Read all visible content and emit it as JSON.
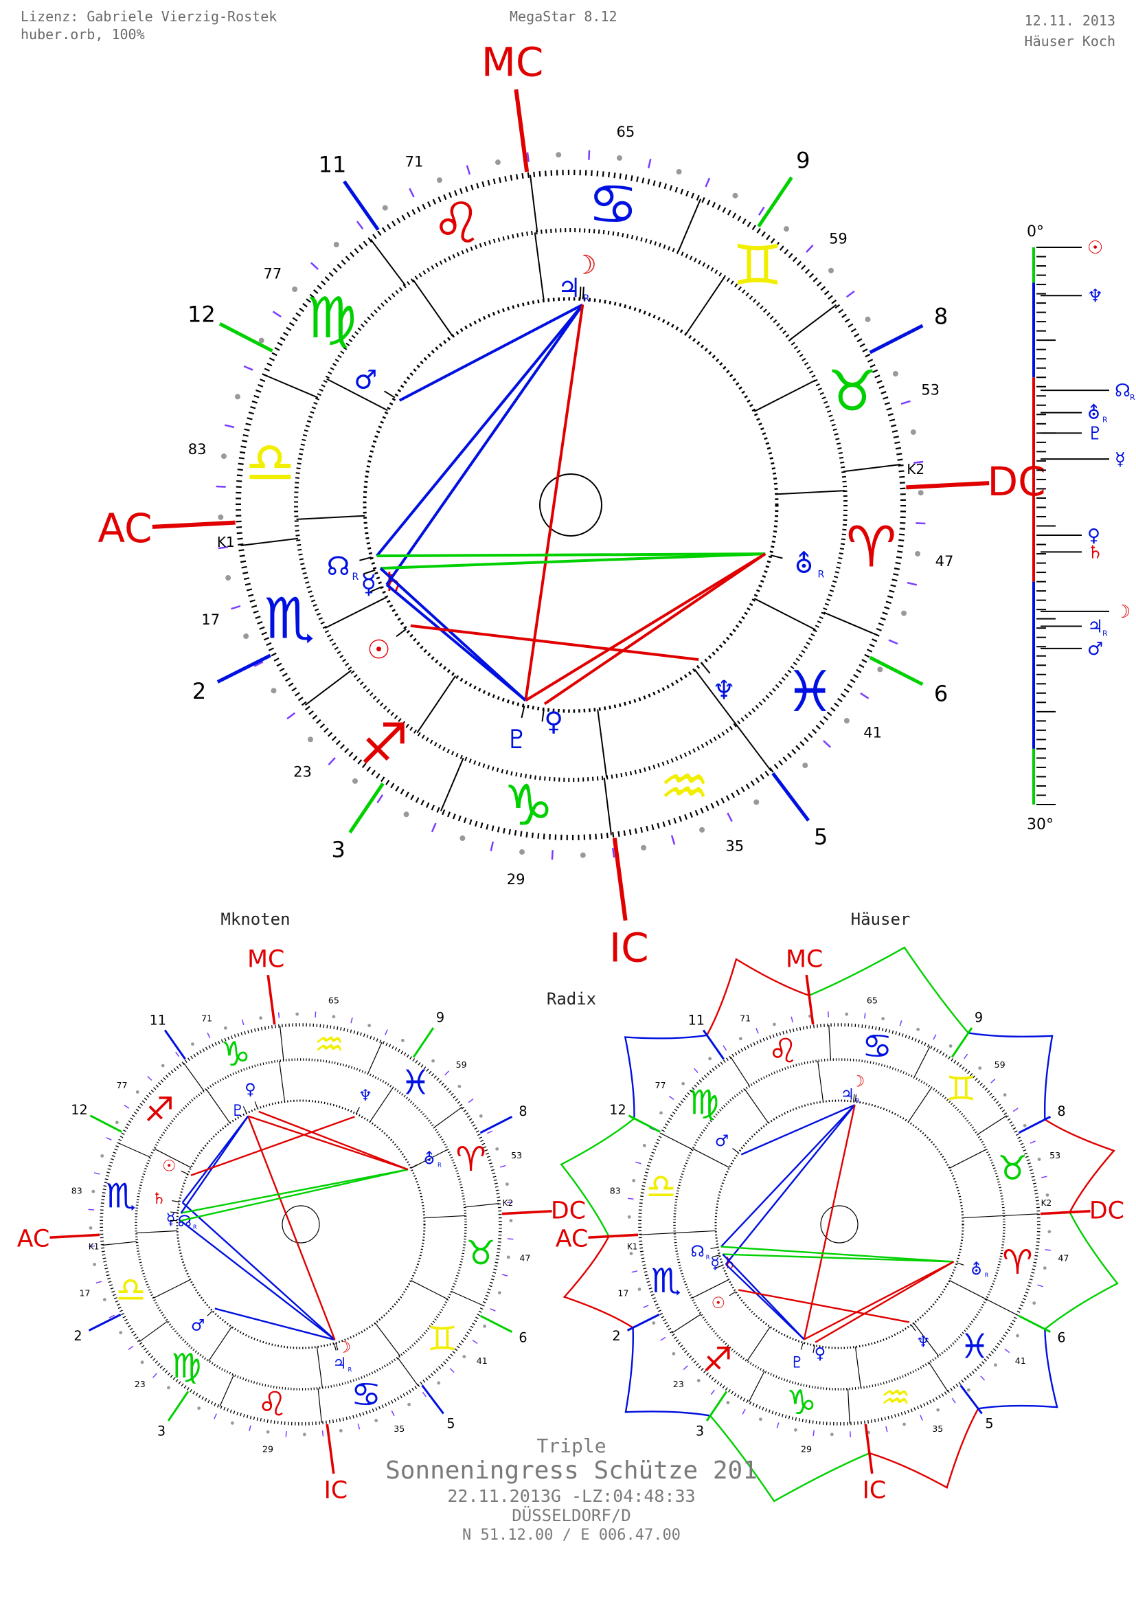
{
  "header": {
    "license": "Lizenz: Gabriele Vierzig-Rostek",
    "orb": "huber.orb, 100%",
    "app": "MegaStar 8.12",
    "date": "12.11. 2013",
    "house_system": "Häuser Koch"
  },
  "labels": {
    "mknoten": "Mknoten",
    "haeuser": "Häuser",
    "radix": "Radix"
  },
  "footer": {
    "type": "Triple",
    "title": "Sonneningress Schütze 201",
    "datetime": "22.11.2013G -LZ:04:48:33",
    "place": "DÜSSELDORF/D",
    "coords": "N 51.12.00 / E 006.47.00"
  },
  "colors": {
    "fire": "#e00000",
    "earth": "#00d000",
    "air": "#f2ee00",
    "water": "#0010e0",
    "aspect_hard": "#e00000",
    "aspect_soft": "#0010e0",
    "aspect_green": "#00d000",
    "orange": "#e89a10"
  },
  "signs": [
    {
      "name": "Widder",
      "glyph": "♈",
      "element": "fire"
    },
    {
      "name": "Stier",
      "glyph": "♉",
      "element": "earth"
    },
    {
      "name": "Zwillinge",
      "glyph": "♊",
      "element": "air"
    },
    {
      "name": "Krebs",
      "glyph": "♋",
      "element": "water"
    },
    {
      "name": "Löwe",
      "glyph": "♌",
      "element": "fire"
    },
    {
      "name": "Jungfrau",
      "glyph": "♍",
      "element": "earth"
    },
    {
      "name": "Waage",
      "glyph": "♎",
      "element": "air"
    },
    {
      "name": "Skorpion",
      "glyph": "♏",
      "element": "water"
    },
    {
      "name": "Schütze",
      "glyph": "♐",
      "element": "fire"
    },
    {
      "name": "Steinbock",
      "glyph": "♑",
      "element": "earth"
    },
    {
      "name": "Wassermann",
      "glyph": "♒",
      "element": "air"
    },
    {
      "name": "Fische",
      "glyph": "♓",
      "element": "water"
    }
  ],
  "houses": [
    {
      "label": "AC",
      "lon": 206,
      "age": "17",
      "color": "fire",
      "marker": "K1"
    },
    {
      "label": "2",
      "lon": 229.6,
      "age": "23",
      "color": "water"
    },
    {
      "label": "3",
      "lon": 259,
      "age": "29",
      "color": "earth"
    },
    {
      "label": "IC",
      "lon": 300.5,
      "age": "35",
      "color": "fire"
    },
    {
      "label": "5",
      "lon": 330,
      "age": "41",
      "color": "water"
    },
    {
      "label": "6",
      "lon": 356,
      "age": "47",
      "color": "earth"
    },
    {
      "label": "DC",
      "lon": 26,
      "age": "53",
      "color": "fire",
      "marker": "K2"
    },
    {
      "label": "8",
      "lon": 50,
      "age": "59",
      "color": "water"
    },
    {
      "label": "9",
      "lon": 79,
      "age": "65",
      "color": "earth"
    },
    {
      "label": "MC",
      "lon": 120.5,
      "age": "71",
      "color": "fire"
    },
    {
      "label": "11",
      "lon": 148,
      "age": "77",
      "color": "water"
    },
    {
      "label": "12",
      "lon": 175.7,
      "age": "83",
      "color": "earth"
    }
  ],
  "planets": [
    {
      "id": "sun",
      "glyph": "☉",
      "lon": 240.0,
      "color": "fire",
      "retro": false
    },
    {
      "id": "moon",
      "glyph": "☽",
      "lon": 109.6,
      "color": "fire",
      "retro": false
    },
    {
      "id": "jupiter",
      "glyph": "♃",
      "lon": 110.4,
      "color": "water",
      "retro": true
    },
    {
      "id": "mars",
      "glyph": "♂",
      "lon": 171.6,
      "color": "water",
      "retro": false
    },
    {
      "id": "node",
      "glyph": "☊",
      "lon": 217.7,
      "color": "water",
      "retro": true
    },
    {
      "id": "mercury",
      "glyph": "☿",
      "lon": 221.4,
      "color": "water",
      "retro": false
    },
    {
      "id": "saturn",
      "glyph": "♄",
      "lon": 226.4,
      "color": "fire",
      "retro": false
    },
    {
      "id": "pluto",
      "glyph": "♇",
      "lon": 280.0,
      "color": "water",
      "retro": false
    },
    {
      "id": "venus",
      "glyph": "♀",
      "lon": 285.5,
      "color": "water",
      "retro": false
    },
    {
      "id": "neptune",
      "glyph": "♆",
      "lon": 332.6,
      "color": "water",
      "retro": false
    },
    {
      "id": "uranus",
      "glyph": "⛢",
      "lon": 8.9,
      "color": "water",
      "retro": true
    }
  ],
  "retro_mark": "R",
  "aspects": [
    {
      "a": "moon",
      "b": "mars",
      "color": "aspect_soft"
    },
    {
      "a": "moon",
      "b": "node",
      "color": "aspect_soft"
    },
    {
      "a": "moon",
      "b": "saturn",
      "color": "aspect_soft"
    },
    {
      "a": "moon",
      "b": "pluto",
      "color": "aspect_hard"
    },
    {
      "a": "node",
      "b": "uranus",
      "color": "aspect_green"
    },
    {
      "a": "mercury",
      "b": "uranus",
      "color": "aspect_green"
    },
    {
      "a": "saturn",
      "b": "pluto",
      "color": "aspect_soft"
    },
    {
      "a": "mercury",
      "b": "pluto",
      "color": "aspect_soft"
    },
    {
      "a": "sun",
      "b": "neptune",
      "color": "aspect_hard"
    },
    {
      "a": "pluto",
      "b": "uranus",
      "color": "aspect_hard"
    },
    {
      "a": "venus",
      "b": "uranus",
      "color": "aspect_hard"
    }
  ],
  "degree_scale": {
    "top_label": "0°",
    "bottom_label": "30°",
    "bands": [
      {
        "from": 0,
        "to": 1.9,
        "color": "earth"
      },
      {
        "from": 1.9,
        "to": 7.0,
        "color": "water"
      },
      {
        "from": 7.0,
        "to": 18.0,
        "color": "fire"
      },
      {
        "from": 18.0,
        "to": 27.0,
        "color": "water"
      },
      {
        "from": 27.0,
        "to": 30,
        "color": "earth"
      }
    ],
    "entries": [
      {
        "planet": "sun",
        "deg": 0.0
      },
      {
        "planet": "neptune",
        "deg": 2.6
      },
      {
        "planet": "node",
        "deg": 7.7
      },
      {
        "planet": "uranus",
        "deg": 8.9
      },
      {
        "planet": "pluto",
        "deg": 10.0
      },
      {
        "planet": "mercury",
        "deg": 11.4
      },
      {
        "planet": "venus",
        "deg": 15.5
      },
      {
        "planet": "saturn",
        "deg": 16.4
      },
      {
        "planet": "moon",
        "deg": 19.6
      },
      {
        "planet": "jupiter",
        "deg": 20.4
      },
      {
        "planet": "mars",
        "deg": 21.6
      }
    ]
  }
}
